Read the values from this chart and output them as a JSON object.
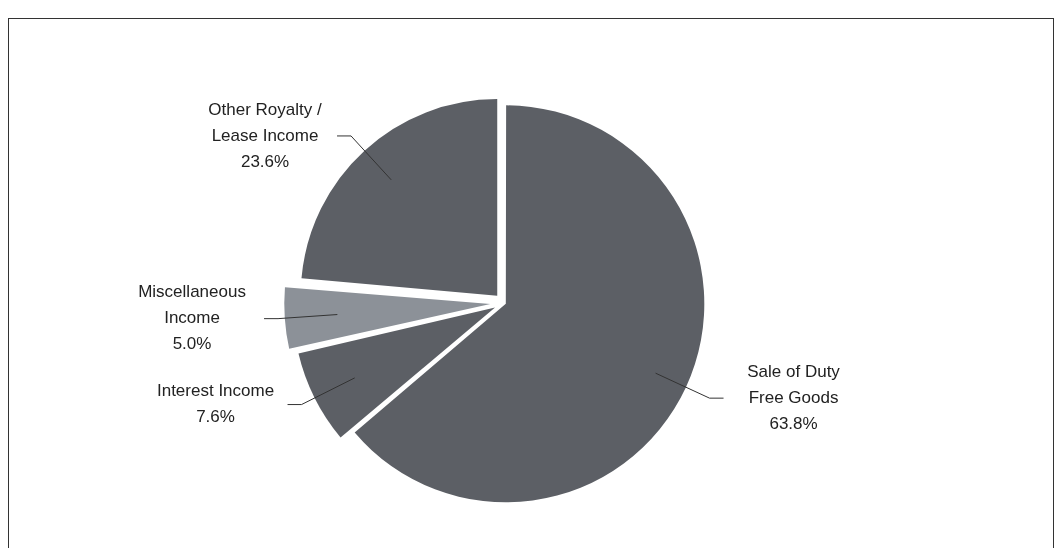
{
  "chart_data": {
    "type": "pie",
    "categories": [
      "Sale of Duty Free Goods",
      "Interest Income",
      "Miscellaneous Income",
      "Other Royalty / Lease Income"
    ],
    "values": [
      63.8,
      7.6,
      5.0,
      23.6
    ],
    "colors": [
      "#5c5f65",
      "#5c5f65",
      "#8c9198",
      "#5c5f65"
    ],
    "value_labels": [
      "63.8%",
      "7.6%",
      "5.0%",
      "23.6%"
    ],
    "legend": false
  }
}
